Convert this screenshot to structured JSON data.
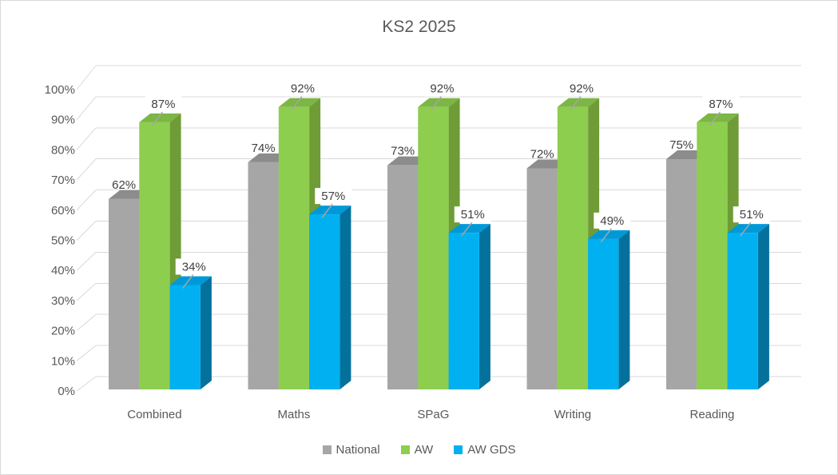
{
  "chart_data": {
    "type": "bar",
    "variant": "3d-clustered-column",
    "title": "KS2 2025",
    "categories": [
      "Combined",
      "Maths",
      "SPaG",
      "Writing",
      "Reading"
    ],
    "series": [
      {
        "name": "National",
        "color": "#A6A6A6",
        "color_top": "#8C8C8C",
        "color_side": "#7A7A7A",
        "values": [
          62,
          74,
          73,
          72,
          75
        ]
      },
      {
        "name": "AW",
        "color": "#8DCE4E",
        "color_top": "#7CB644",
        "color_side": "#6F9C37",
        "values": [
          87,
          92,
          92,
          92,
          87
        ]
      },
      {
        "name": "AW GDS",
        "color": "#00B0F0",
        "color_top": "#0099D8",
        "color_side": "#04719D",
        "values": [
          34,
          57,
          51,
          49,
          51
        ]
      }
    ],
    "y_ticks": [
      "0%",
      "10%",
      "20%",
      "30%",
      "40%",
      "50%",
      "60%",
      "70%",
      "80%",
      "90%",
      "100%"
    ],
    "ylim": [
      0,
      100
    ],
    "xlabel": "",
    "ylabel": "",
    "grid": true,
    "legend_position": "bottom",
    "data_label_format": "{v}%"
  },
  "styles": {
    "grid_color": "#D9D9D9",
    "axis_text_color": "#595959",
    "category_text_color": "#595959",
    "data_label_color": "#404040",
    "leader_line_color": "#A6A6A6",
    "title_color": "#595959",
    "border_color": "#D9D9D9",
    "background": "#FFFFFF"
  }
}
